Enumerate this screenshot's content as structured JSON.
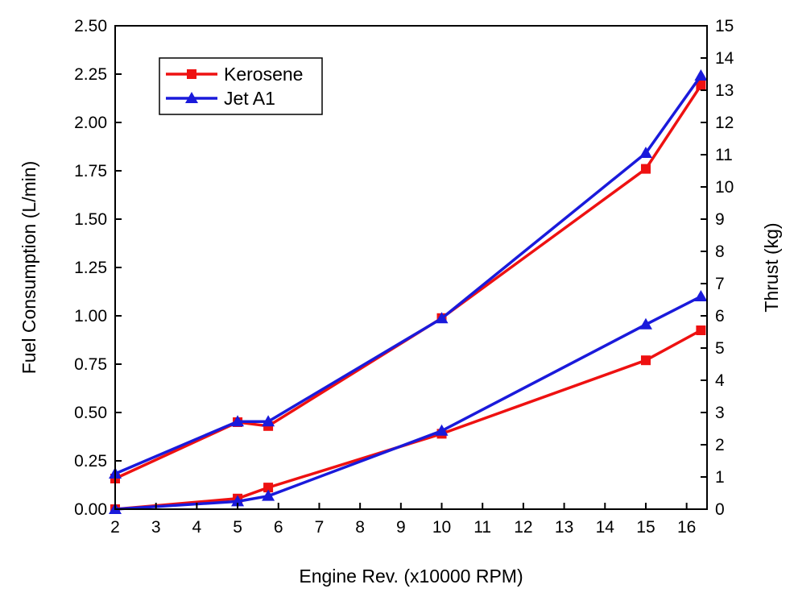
{
  "chart_data": {
    "type": "line",
    "title": "",
    "xlabel": "Engine Rev. (x10000 RPM)",
    "ylabel_left": "Fuel Consumption (L/min)",
    "ylabel_right": "Thrust (kg)",
    "xlim": [
      2,
      16.5
    ],
    "ylim_left": [
      0,
      2.5
    ],
    "ylim_right": [
      0,
      15
    ],
    "x_ticks": [
      "2",
      "3",
      "4",
      "5",
      "6",
      "7",
      "8",
      "9",
      "10",
      "11",
      "12",
      "13",
      "14",
      "15",
      "16"
    ],
    "y_left_ticks": [
      "0.00",
      "0.25",
      "0.50",
      "0.75",
      "1.00",
      "1.25",
      "1.50",
      "1.75",
      "2.00",
      "2.25",
      "2.50"
    ],
    "y_right_ticks": [
      "0",
      "1",
      "2",
      "3",
      "4",
      "5",
      "6",
      "7",
      "8",
      "9",
      "10",
      "11",
      "12",
      "13",
      "14",
      "15"
    ],
    "grid": false,
    "legend_position": "top-left",
    "legend": [
      {
        "name": "Kerosene",
        "color": "#ee1111",
        "marker": "square"
      },
      {
        "name": "Jet A1",
        "color": "#1a1adb",
        "marker": "triangle"
      }
    ],
    "series": [
      {
        "group": "Kerosene",
        "axis": "right",
        "quantity": "Thrust",
        "color": "#ee1111",
        "marker": "square",
        "x": [
          2,
          5,
          5.75,
          10,
          15,
          16.35
        ],
        "y": [
          0.95,
          2.7,
          2.58,
          5.93,
          10.56,
          13.15
        ]
      },
      {
        "group": "Jet A1",
        "axis": "right",
        "quantity": "Thrust",
        "color": "#1a1adb",
        "marker": "triangle",
        "x": [
          2,
          5,
          5.75,
          10,
          15,
          16.35
        ],
        "y": [
          1.1,
          2.72,
          2.72,
          5.92,
          11.05,
          13.45
        ]
      },
      {
        "group": "Kerosene",
        "axis": "left",
        "quantity": "Fuel Consumption",
        "color": "#ee1111",
        "marker": "square",
        "x": [
          2,
          5,
          5.75,
          10,
          15,
          16.35
        ],
        "y": [
          0.0,
          0.055,
          0.112,
          0.39,
          0.77,
          0.925
        ]
      },
      {
        "group": "Jet A1",
        "axis": "left",
        "quantity": "Fuel Consumption",
        "color": "#1a1adb",
        "marker": "triangle",
        "x": [
          2,
          5,
          5.75,
          10,
          15,
          16.35
        ],
        "y": [
          0.0,
          0.04,
          0.068,
          0.405,
          0.955,
          1.1
        ]
      }
    ]
  }
}
